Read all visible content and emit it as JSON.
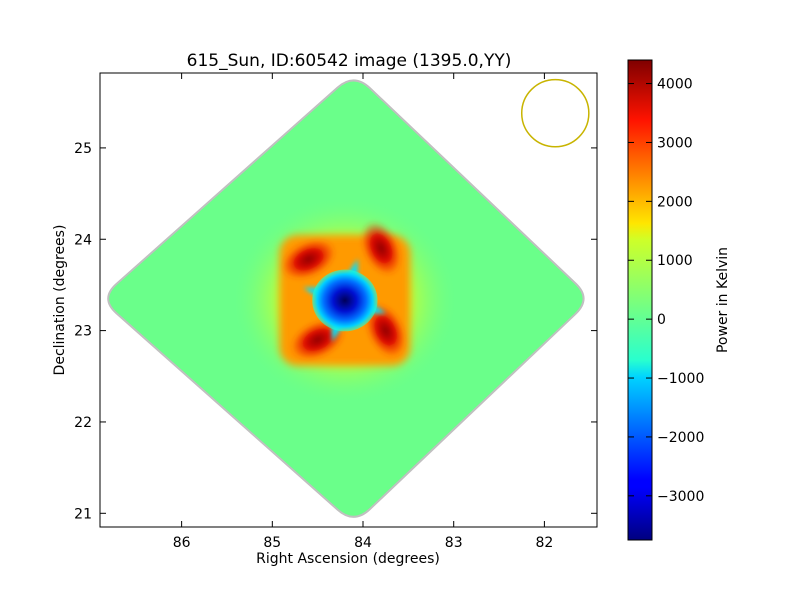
{
  "chart_data": {
    "type": "heatmap",
    "title": "615_Sun, ID:60542 image (1395.0,YY)",
    "xlabel": "Right Ascension (degrees)",
    "ylabel": "Declination (degrees)",
    "xlim": [
      86.9,
      81.42
    ],
    "ylim": [
      20.85,
      25.82
    ],
    "x_ticks": [
      86,
      85,
      84,
      83,
      82
    ],
    "y_ticks": [
      21,
      22,
      23,
      24,
      25
    ],
    "colorbar": {
      "label": "Power in Kelvin",
      "colormap": "jet",
      "range": [
        -3750,
        4400
      ],
      "ticks": [
        -3000,
        -2000,
        -1000,
        0,
        1000,
        2000,
        3000,
        4000
      ]
    },
    "field": {
      "shape": "diamond",
      "center": [
        84.2,
        23.35
      ],
      "background_value": 300,
      "vertices": [
        [
          84.1,
          25.82
        ],
        [
          86.9,
          23.35
        ],
        [
          84.1,
          20.88
        ],
        [
          81.48,
          23.35
        ]
      ]
    },
    "source": {
      "center": [
        84.2,
        23.33
      ],
      "min_value": -3750,
      "max_value": 4400,
      "peaks": [
        [
          84.6,
          23.78
        ],
        [
          83.8,
          23.9
        ],
        [
          84.5,
          22.9
        ],
        [
          83.75,
          23.0
        ]
      ]
    },
    "beam": {
      "center": [
        81.88,
        25.38
      ],
      "radius_deg": 0.37,
      "color": "#c8b400"
    }
  }
}
